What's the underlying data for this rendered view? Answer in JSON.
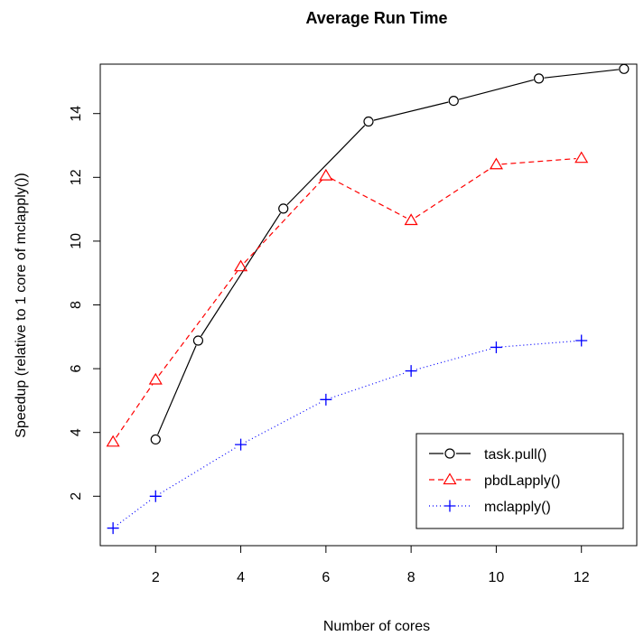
{
  "chart_data": {
    "type": "line",
    "title": "Average Run Time",
    "xlabel": "Number of cores",
    "ylabel": "Speedup (relative to 1 core of mclapply())",
    "xlim": [
      0.7,
      13.3
    ],
    "ylim": [
      0.45,
      15.55
    ],
    "x_ticks": [
      2,
      4,
      6,
      8,
      10,
      12
    ],
    "y_ticks": [
      2,
      4,
      6,
      8,
      10,
      12,
      14
    ],
    "grid": false,
    "legend_position": "bottom-right",
    "series": [
      {
        "name": "task.pull()",
        "color": "#000000",
        "marker": "circle",
        "line_style": "solid",
        "x": [
          2,
          3,
          5,
          7,
          9,
          11,
          13
        ],
        "y": [
          3.78,
          6.88,
          11.02,
          13.75,
          14.4,
          15.1,
          15.4
        ]
      },
      {
        "name": "pbdLapply()",
        "color": "#ff0000",
        "marker": "triangle",
        "line_style": "dashed",
        "x": [
          1,
          2,
          4,
          6,
          8,
          10,
          12
        ],
        "y": [
          3.7,
          5.65,
          9.2,
          12.05,
          10.65,
          12.4,
          12.6
        ]
      },
      {
        "name": "mclapply()",
        "color": "#0000ff",
        "marker": "plus",
        "line_style": "dotted",
        "x": [
          1,
          2,
          4,
          6,
          8,
          10,
          12
        ],
        "y": [
          1.0,
          2.0,
          3.62,
          5.03,
          5.93,
          6.67,
          6.88
        ]
      }
    ]
  }
}
